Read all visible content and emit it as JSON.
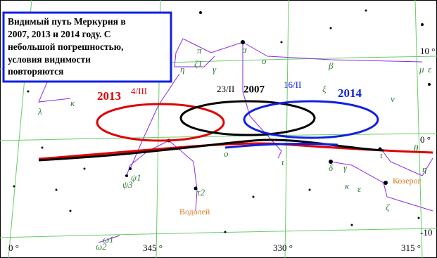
{
  "title_box": {
    "lines": [
      "Видимый путь Меркурия в",
      "2007, 2013 и 2014 году. С",
      "небольшой погрешностью,",
      "условия видимости",
      "повторяются"
    ]
  },
  "loops": [
    {
      "year": "2013",
      "date": "4/III"
    },
    {
      "year": "2007",
      "date": "23/II"
    },
    {
      "year": "2014",
      "date": "16/II"
    }
  ],
  "axis_labels": {
    "bottom": [
      "0 °",
      "345 °",
      "330 °",
      "315 °"
    ],
    "right": [
      "10 °",
      "0 °",
      "-10"
    ]
  },
  "constellations": [
    "Водолей",
    "Козерог"
  ],
  "star_labels": [
    "π",
    "ζ1",
    "γ",
    "η",
    "α",
    "ο",
    "β",
    "μ",
    "ε",
    "λ",
    "κ",
    "ξ",
    "ν",
    "θ",
    "ι",
    "δ",
    "γ",
    "κ",
    "ε",
    "ζ",
    "η",
    "τ2",
    "ψ1",
    "ψ3",
    "ω1",
    "ω2",
    "ο",
    "ι"
  ]
}
